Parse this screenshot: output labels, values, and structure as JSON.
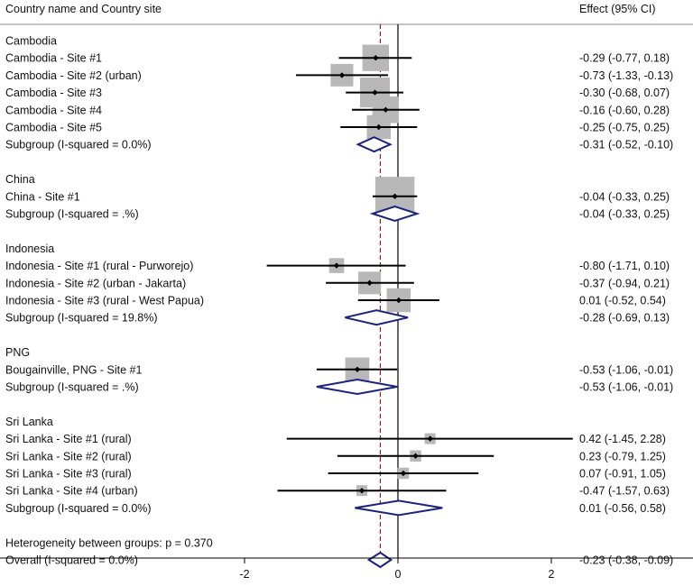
{
  "colors": {
    "box": "#b8b8b8",
    "ci": "#000000",
    "diamond": "#1a237e",
    "ref_line": "#8b1a1a",
    "axis": "#000000",
    "rule": "#888888"
  },
  "chart_data": {
    "type": "forest",
    "header_left": "Country name and Country site",
    "header_right": "Effect (95% CI)",
    "xlim": [
      -2.6,
      2.7
    ],
    "xticks": [
      -2,
      0,
      2
    ],
    "xtick_labels": [
      "-2",
      "0",
      "2"
    ],
    "null_line": 0,
    "overall_line": -0.23,
    "groups": [
      {
        "name": "Cambodia",
        "studies": [
          {
            "label": "Cambodia - Site #1",
            "est": -0.29,
            "lo": -0.77,
            "hi": 0.18,
            "text": "-0.29 (-0.77, 0.18)",
            "weight": 1.1
          },
          {
            "label": "Cambodia - Site #2 (urban)",
            "est": -0.73,
            "lo": -1.33,
            "hi": -0.13,
            "text": "-0.73 (-1.33, -0.13)",
            "weight": 0.8
          },
          {
            "label": "Cambodia - Site #3",
            "est": -0.3,
            "lo": -0.68,
            "hi": 0.07,
            "text": "-0.30 (-0.68, 0.07)",
            "weight": 1.4
          },
          {
            "label": "Cambodia - Site #4",
            "est": -0.16,
            "lo": -0.6,
            "hi": 0.28,
            "text": "-0.16 (-0.60, 0.28)",
            "weight": 1.1
          },
          {
            "label": "Cambodia - Site #5",
            "est": -0.25,
            "lo": -0.75,
            "hi": 0.25,
            "text": "-0.25 (-0.75, 0.25)",
            "weight": 0.9
          }
        ],
        "subgroup": {
          "label": "Subgroup (I-squared = 0.0%)",
          "est": -0.31,
          "lo": -0.52,
          "hi": -0.1,
          "text": "-0.31 (-0.52, -0.10)"
        }
      },
      {
        "name": "China",
        "studies": [
          {
            "label": "China - Site #1",
            "est": -0.04,
            "lo": -0.33,
            "hi": 0.25,
            "text": "-0.04 (-0.33, 0.25)",
            "weight": 2.4
          }
        ],
        "subgroup": {
          "label": "Subgroup (I-squared = .%)",
          "est": -0.04,
          "lo": -0.33,
          "hi": 0.25,
          "text": "-0.04 (-0.33, 0.25)"
        }
      },
      {
        "name": "Indonesia",
        "studies": [
          {
            "label": "Indonesia - Site #1 (rural - Purworejo)",
            "est": -0.8,
            "lo": -1.71,
            "hi": 0.1,
            "text": "-0.80 (-1.71, 0.10)",
            "weight": 0.35
          },
          {
            "label": "Indonesia - Site #2 (urban - Jakarta)",
            "est": -0.37,
            "lo": -0.94,
            "hi": 0.21,
            "text": "-0.37 (-0.94, 0.21)",
            "weight": 0.8
          },
          {
            "label": "Indonesia - Site #3 (rural - West Papua)",
            "est": 0.01,
            "lo": -0.52,
            "hi": 0.54,
            "text": "0.01 (-0.52, 0.54)",
            "weight": 0.9
          }
        ],
        "subgroup": {
          "label": "Subgroup (I-squared = 19.8%)",
          "est": -0.28,
          "lo": -0.69,
          "hi": 0.13,
          "text": "-0.28 (-0.69, 0.13)"
        }
      },
      {
        "name": "PNG",
        "studies": [
          {
            "label": "Bougainville, PNG - Site #1",
            "est": -0.53,
            "lo": -1.06,
            "hi": -0.01,
            "text": "-0.53 (-1.06, -0.01)",
            "weight": 0.9
          }
        ],
        "subgroup": {
          "label": "Subgroup (I-squared = .%)",
          "est": -0.53,
          "lo": -1.06,
          "hi": -0.01,
          "text": "-0.53 (-1.06, -0.01)"
        }
      },
      {
        "name": "Sri Lanka",
        "studies": [
          {
            "label": "Sri Lanka - Site #1 (rural)",
            "est": 0.42,
            "lo": -1.45,
            "hi": 2.28,
            "text": "0.42 (-1.45, 2.28)",
            "weight": 0.05
          },
          {
            "label": "Sri Lanka - Site #2 (rural)",
            "est": 0.23,
            "lo": -0.79,
            "hi": 1.25,
            "text": "0.23 (-0.79, 1.25)",
            "weight": 0.2
          },
          {
            "label": "Sri Lanka - Site #3 (rural)",
            "est": 0.07,
            "lo": -0.91,
            "hi": 1.05,
            "text": "0.07 (-0.91, 1.05)",
            "weight": 0.2
          },
          {
            "label": "Sri Lanka - Site #4 (urban)",
            "est": -0.47,
            "lo": -1.57,
            "hi": 0.63,
            "text": "-0.47 (-1.57, 0.63)",
            "weight": 0.18
          }
        ],
        "subgroup": {
          "label": "Subgroup (I-squared = 0.0%)",
          "est": 0.01,
          "lo": -0.56,
          "hi": 0.58,
          "text": "0.01 (-0.56, 0.58)"
        }
      }
    ],
    "heterogeneity_label": "Heterogeneity between groups: p = 0.370",
    "overall": {
      "label": "Overall (I-squared = 0.0%)",
      "est": -0.23,
      "lo": -0.38,
      "hi": -0.09,
      "text": "-0.23 (-0.38, -0.09)"
    }
  }
}
